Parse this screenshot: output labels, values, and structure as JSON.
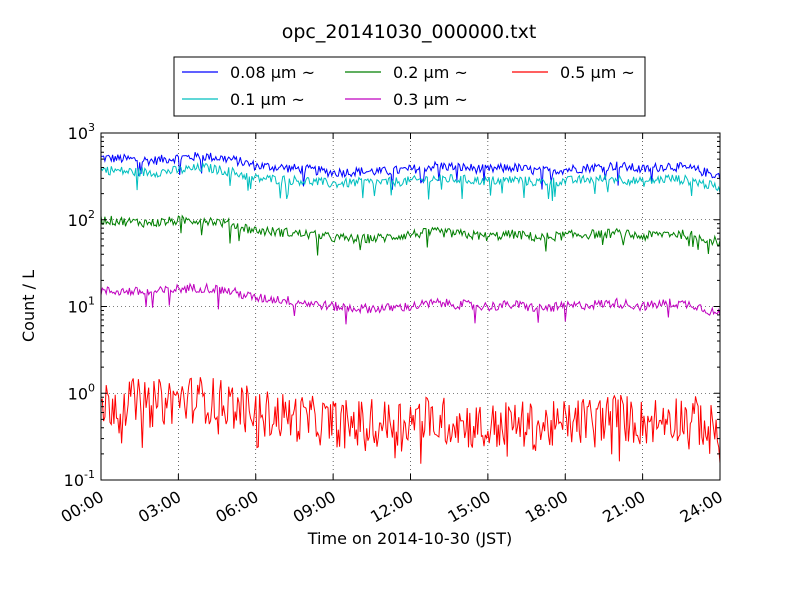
{
  "chart_data": {
    "type": "line",
    "title": "opc_20141030_000000.txt",
    "xlabel": "Time on 2014-10-30 (JST)",
    "ylabel": "Count / L",
    "x_ticks": [
      "00:00",
      "03:00",
      "06:00",
      "09:00",
      "12:00",
      "15:00",
      "18:00",
      "21:00",
      "24:00"
    ],
    "xlim": [
      "00:00",
      "24:00"
    ],
    "yscale": "log",
    "ylim": [
      0.1,
      1000
    ],
    "y_ticks": [
      {
        "base": "10",
        "exp": "-1"
      },
      {
        "base": "10",
        "exp": "0"
      },
      {
        "base": "10",
        "exp": "1"
      },
      {
        "base": "10",
        "exp": "2"
      },
      {
        "base": "10",
        "exp": "3"
      }
    ],
    "grid": true,
    "legend_position": "top",
    "series": [
      {
        "name": "0.08 μm ~",
        "color": "#0000ff",
        "x": [
          "00:00",
          "01:00",
          "02:00",
          "03:00",
          "04:00",
          "05:00",
          "06:00",
          "07:00",
          "08:00",
          "09:00",
          "10:00",
          "11:00",
          "12:00",
          "13:00",
          "14:00",
          "15:00",
          "16:00",
          "17:00",
          "18:00",
          "19:00",
          "20:00",
          "21:00",
          "22:00",
          "23:00",
          "24:00"
        ],
        "y": [
          520,
          500,
          480,
          520,
          540,
          500,
          420,
          400,
          380,
          350,
          360,
          360,
          380,
          420,
          400,
          380,
          400,
          360,
          380,
          400,
          420,
          380,
          420,
          380,
          320
        ]
      },
      {
        "name": "0.1 μm ~",
        "color": "#00bfbf",
        "x": [
          "00:00",
          "01:00",
          "02:00",
          "03:00",
          "04:00",
          "05:00",
          "06:00",
          "07:00",
          "08:00",
          "09:00",
          "10:00",
          "11:00",
          "12:00",
          "13:00",
          "14:00",
          "15:00",
          "16:00",
          "17:00",
          "18:00",
          "19:00",
          "20:00",
          "21:00",
          "22:00",
          "23:00",
          "24:00"
        ],
        "y": [
          380,
          360,
          350,
          370,
          400,
          360,
          300,
          290,
          280,
          260,
          270,
          270,
          280,
          300,
          290,
          280,
          290,
          270,
          280,
          290,
          300,
          270,
          300,
          280,
          230
        ]
      },
      {
        "name": "0.2 μm ~",
        "color": "#007f00",
        "x": [
          "00:00",
          "01:00",
          "02:00",
          "03:00",
          "04:00",
          "05:00",
          "06:00",
          "07:00",
          "08:00",
          "09:00",
          "10:00",
          "11:00",
          "12:00",
          "13:00",
          "14:00",
          "15:00",
          "16:00",
          "17:00",
          "18:00",
          "19:00",
          "20:00",
          "21:00",
          "22:00",
          "23:00",
          "24:00"
        ],
        "y": [
          100,
          95,
          92,
          98,
          100,
          90,
          75,
          72,
          68,
          62,
          60,
          62,
          68,
          72,
          68,
          64,
          68,
          62,
          66,
          68,
          70,
          64,
          70,
          66,
          55
        ]
      },
      {
        "name": "0.3 μm ~",
        "color": "#bf00bf",
        "x": [
          "00:00",
          "01:00",
          "02:00",
          "03:00",
          "04:00",
          "05:00",
          "06:00",
          "07:00",
          "08:00",
          "09:00",
          "10:00",
          "11:00",
          "12:00",
          "13:00",
          "14:00",
          "15:00",
          "16:00",
          "17:00",
          "18:00",
          "19:00",
          "20:00",
          "21:00",
          "22:00",
          "23:00",
          "24:00"
        ],
        "y": [
          15,
          15,
          14.5,
          16,
          16.5,
          15,
          12.5,
          12,
          11,
          10,
          9.5,
          9.5,
          10,
          11,
          10.5,
          10,
          10.5,
          9.5,
          10,
          10.5,
          11,
          10,
          11,
          10.5,
          8
        ]
      },
      {
        "name": "0.5 μm ~",
        "color": "#ff0000",
        "x": [
          "00:00",
          "01:00",
          "02:00",
          "03:00",
          "04:00",
          "05:00",
          "06:00",
          "07:00",
          "08:00",
          "09:00",
          "10:00",
          "11:00",
          "12:00",
          "13:00",
          "14:00",
          "15:00",
          "16:00",
          "17:00",
          "18:00",
          "19:00",
          "20:00",
          "21:00",
          "22:00",
          "23:00",
          "24:00"
        ],
        "y": [
          0.75,
          0.8,
          0.75,
          0.85,
          0.85,
          0.75,
          0.6,
          0.55,
          0.5,
          0.45,
          0.45,
          0.45,
          0.5,
          0.5,
          0.45,
          0.4,
          0.45,
          0.4,
          0.45,
          0.5,
          0.55,
          0.45,
          0.55,
          0.5,
          0.35
        ]
      }
    ]
  }
}
